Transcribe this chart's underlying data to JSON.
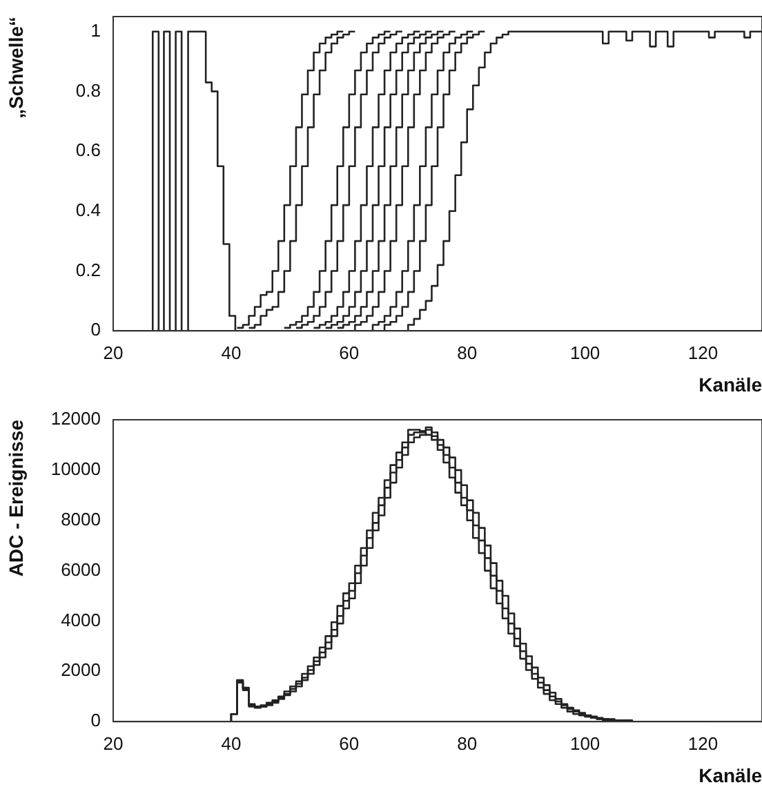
{
  "chart_data": [
    {
      "type": "step",
      "xlabel": "Kanäle",
      "ylabel": "„Schwelle“",
      "xlim": [
        20,
        130
      ],
      "xticks": [
        20,
        40,
        60,
        80,
        100,
        120
      ],
      "ylim": [
        0,
        1.05
      ],
      "yticks": [
        0,
        0.2,
        0.4,
        0.6,
        0.8,
        1
      ],
      "series": [
        {
          "color": "#222222",
          "x": [
            26.7,
            26.7,
            27.7,
            28.6,
            29.6,
            30.6,
            31.6,
            32.7,
            35.7,
            36.7,
            37.7,
            38.7,
            39.7,
            40.7
          ],
          "values": [
            0,
            1,
            0,
            1,
            0,
            1,
            0,
            1,
            0.83,
            0.8,
            0.55,
            0.29,
            0.05,
            0
          ]
        },
        {
          "color": "#222222",
          "x": [
            41,
            42,
            43,
            44,
            45,
            46,
            47,
            48,
            49,
            50,
            51,
            52,
            53,
            54,
            55,
            56,
            57,
            58,
            59
          ],
          "values": [
            0.01,
            0.02,
            0.05,
            0.08,
            0.12,
            0.13,
            0.2,
            0.3,
            0.42,
            0.55,
            0.68,
            0.79,
            0.87,
            0.93,
            0.96,
            0.98,
            0.99,
            1,
            1
          ]
        },
        {
          "color": "#222222",
          "x": [
            43,
            44,
            45,
            46,
            47,
            48,
            49,
            50,
            51,
            52,
            53,
            54,
            55,
            56,
            57,
            58,
            59,
            60,
            61
          ],
          "values": [
            0.01,
            0.02,
            0.05,
            0.07,
            0.08,
            0.13,
            0.2,
            0.3,
            0.42,
            0.55,
            0.68,
            0.79,
            0.87,
            0.93,
            0.96,
            0.98,
            0.99,
            1,
            1
          ]
        },
        {
          "color": "#222222",
          "x": [
            49,
            50,
            51,
            52,
            53,
            54,
            55,
            56,
            57,
            58,
            59,
            60,
            61,
            62,
            63,
            64,
            65,
            66,
            67
          ],
          "values": [
            0.01,
            0.02,
            0.03,
            0.05,
            0.08,
            0.13,
            0.2,
            0.3,
            0.42,
            0.55,
            0.68,
            0.79,
            0.87,
            0.93,
            0.96,
            0.98,
            0.99,
            1,
            1
          ]
        },
        {
          "color": "#222222",
          "x": [
            51,
            52,
            53,
            54,
            55,
            56,
            57,
            58,
            59,
            60,
            61,
            62,
            63,
            64,
            65,
            66,
            67,
            68,
            69
          ],
          "values": [
            0.01,
            0.02,
            0.03,
            0.05,
            0.08,
            0.13,
            0.2,
            0.3,
            0.42,
            0.55,
            0.68,
            0.79,
            0.87,
            0.93,
            0.96,
            0.98,
            0.99,
            1,
            1
          ]
        },
        {
          "color": "#222222",
          "x": [
            54,
            55,
            56,
            57,
            58,
            59,
            60,
            61,
            62,
            63,
            64,
            65,
            66,
            67,
            68,
            69,
            70,
            71,
            72
          ],
          "values": [
            0.01,
            0.02,
            0.03,
            0.05,
            0.08,
            0.13,
            0.2,
            0.3,
            0.42,
            0.55,
            0.68,
            0.79,
            0.87,
            0.93,
            0.96,
            0.98,
            0.99,
            1,
            1
          ]
        },
        {
          "color": "#222222",
          "x": [
            56,
            57,
            58,
            59,
            60,
            61,
            62,
            63,
            64,
            65,
            66,
            67,
            68,
            69,
            70,
            71,
            72,
            73,
            74
          ],
          "values": [
            0.01,
            0.02,
            0.03,
            0.05,
            0.08,
            0.13,
            0.2,
            0.3,
            0.42,
            0.55,
            0.68,
            0.79,
            0.87,
            0.93,
            0.96,
            0.98,
            0.99,
            1,
            1
          ]
        },
        {
          "color": "#222222",
          "x": [
            58,
            59,
            60,
            61,
            62,
            63,
            64,
            65,
            66,
            67,
            68,
            69,
            70,
            71,
            72,
            73,
            74,
            75,
            76
          ],
          "values": [
            0.01,
            0.02,
            0.03,
            0.05,
            0.08,
            0.13,
            0.2,
            0.3,
            0.42,
            0.55,
            0.68,
            0.79,
            0.87,
            0.93,
            0.96,
            0.98,
            0.99,
            1,
            1
          ]
        },
        {
          "color": "#222222",
          "x": [
            60,
            61,
            62,
            63,
            64,
            65,
            66,
            67,
            68,
            69,
            70,
            71,
            72,
            73,
            74,
            75,
            76,
            77,
            78
          ],
          "values": [
            0,
            0.02,
            0.03,
            0.05,
            0.08,
            0.13,
            0.2,
            0.3,
            0.42,
            0.55,
            0.68,
            0.79,
            0.87,
            0.93,
            0.96,
            0.98,
            0.99,
            1,
            1
          ]
        },
        {
          "color": "#222222",
          "x": [
            63,
            64,
            65,
            66,
            67,
            68,
            69,
            70,
            71,
            72,
            73,
            74,
            75,
            76,
            77,
            78,
            79,
            80,
            81
          ],
          "values": [
            0,
            0.02,
            0.03,
            0.05,
            0.08,
            0.13,
            0.2,
            0.3,
            0.42,
            0.55,
            0.68,
            0.79,
            0.87,
            0.93,
            0.96,
            0.98,
            0.99,
            1,
            1
          ]
        },
        {
          "color": "#222222",
          "x": [
            65,
            66,
            67,
            68,
            69,
            70,
            71,
            72,
            73,
            74,
            75,
            76,
            77,
            78,
            79,
            80,
            81,
            82,
            83
          ],
          "values": [
            0,
            0.02,
            0.03,
            0.05,
            0.08,
            0.13,
            0.2,
            0.3,
            0.42,
            0.55,
            0.68,
            0.79,
            0.87,
            0.93,
            0.96,
            0.98,
            0.99,
            1,
            1
          ]
        },
        {
          "color": "#222222",
          "x": [
            69,
            70,
            71,
            72,
            73,
            74,
            75,
            76,
            77,
            78,
            79,
            80,
            81,
            82,
            83,
            84,
            85,
            86,
            87,
            88,
            103,
            104,
            107,
            108,
            111,
            112,
            114,
            115,
            121,
            122,
            127,
            128,
            130
          ],
          "values": [
            0,
            0.02,
            0.04,
            0.07,
            0.1,
            0.15,
            0.22,
            0.3,
            0.4,
            0.52,
            0.63,
            0.74,
            0.82,
            0.88,
            0.93,
            0.96,
            0.98,
            0.99,
            1,
            1,
            0.96,
            1,
            0.97,
            1,
            0.95,
            1,
            0.95,
            1,
            0.98,
            1,
            0.98,
            1,
            1
          ]
        }
      ]
    },
    {
      "type": "step",
      "xlabel": "Kanäle",
      "ylabel": "ADC - Ereignisse",
      "xlim": [
        20,
        130
      ],
      "xticks": [
        20,
        40,
        60,
        80,
        100,
        120
      ],
      "ylim": [
        0,
        12000
      ],
      "yticks": [
        0,
        2000,
        4000,
        6000,
        8000,
        10000,
        12000
      ],
      "series": [
        {
          "color": "#222222",
          "x": [
            39,
            40,
            41,
            42,
            43,
            44,
            45,
            46,
            47,
            48,
            49,
            50,
            51,
            52,
            53,
            54,
            55,
            56,
            57,
            58,
            59,
            60,
            61,
            62,
            63,
            64,
            65,
            66,
            67,
            68,
            69,
            70,
            71,
            72,
            73,
            74,
            75,
            76,
            77,
            78,
            79,
            80,
            81,
            82,
            83,
            84,
            85,
            86,
            87,
            88,
            89,
            90,
            91,
            92,
            93,
            94,
            95,
            96,
            97,
            98,
            99,
            100,
            101,
            102,
            103,
            104,
            105,
            106,
            107,
            108,
            109,
            110,
            111,
            112,
            113,
            114,
            115,
            116,
            117,
            118,
            119,
            120,
            121
          ],
          "values": [
            0,
            300,
            1600,
            1300,
            650,
            600,
            600,
            700,
            800,
            950,
            1100,
            1300,
            1500,
            1750,
            2050,
            2400,
            2750,
            3150,
            3650,
            4200,
            4800,
            5200,
            5900,
            6600,
            7300,
            7900,
            8600,
            9300,
            9900,
            10400,
            10900,
            11400,
            11500,
            11550,
            11600,
            11350,
            11000,
            10600,
            10100,
            9500,
            8900,
            8400,
            7800,
            7200,
            6500,
            5800,
            5200,
            4500,
            3900,
            3300,
            2800,
            2300,
            1900,
            1550,
            1250,
            1000,
            800,
            650,
            500,
            400,
            300,
            200,
            150,
            100,
            100,
            50,
            50,
            50,
            0,
            0,
            0,
            0,
            0,
            0,
            0,
            0,
            0,
            0,
            0,
            0,
            0,
            0,
            0
          ]
        },
        {
          "color": "#222222",
          "x": [
            39,
            40,
            41,
            42,
            43,
            44,
            45,
            46,
            47,
            48,
            49,
            50,
            51,
            52,
            53,
            54,
            55,
            56,
            57,
            58,
            59,
            60,
            61,
            62,
            63,
            64,
            65,
            66,
            67,
            68,
            69,
            70,
            71,
            72,
            73,
            74,
            75,
            76,
            77,
            78,
            79,
            80,
            81,
            82,
            83,
            84,
            85,
            86,
            87,
            88,
            89,
            90,
            91,
            92,
            93,
            94,
            95,
            96,
            97,
            98,
            99,
            100,
            101,
            102,
            103,
            104,
            105,
            106,
            107,
            108,
            109,
            110,
            111,
            112,
            113,
            114,
            115,
            116,
            117,
            118,
            119,
            120,
            121
          ],
          "values": [
            0,
            300,
            1550,
            1250,
            600,
            550,
            600,
            650,
            750,
            900,
            1050,
            1200,
            1400,
            1650,
            1900,
            2250,
            2550,
            2900,
            3400,
            3900,
            4500,
            4900,
            5500,
            6200,
            6900,
            7600,
            8200,
            8900,
            9500,
            10100,
            10600,
            11100,
            11300,
            11400,
            11700,
            11500,
            11200,
            10900,
            10500,
            10000,
            9400,
            8800,
            8300,
            7700,
            7000,
            6300,
            5600,
            5000,
            4300,
            3700,
            3100,
            2600,
            2150,
            1750,
            1450,
            1150,
            900,
            700,
            550,
            450,
            350,
            250,
            200,
            150,
            100,
            100,
            50,
            50,
            50,
            0,
            0,
            0,
            0,
            0,
            0,
            0,
            0,
            0,
            0,
            0,
            0,
            0,
            0
          ]
        },
        {
          "color": "#222222",
          "x": [
            39,
            40,
            41,
            42,
            43,
            44,
            45,
            46,
            47,
            48,
            49,
            50,
            51,
            52,
            53,
            54,
            55,
            56,
            57,
            58,
            59,
            60,
            61,
            62,
            63,
            64,
            65,
            66,
            67,
            68,
            69,
            70,
            71,
            72,
            73,
            74,
            75,
            76,
            77,
            78,
            79,
            80,
            81,
            82,
            83,
            84,
            85,
            86,
            87,
            88,
            89,
            90,
            91,
            92,
            93,
            94,
            95,
            96,
            97,
            98,
            99,
            100,
            101,
            102,
            103,
            104,
            105,
            106,
            107,
            108,
            109,
            110,
            111,
            112,
            113,
            114,
            115,
            116,
            117,
            118,
            119,
            120,
            121
          ],
          "values": [
            0,
            300,
            1650,
            1350,
            700,
            600,
            650,
            750,
            850,
            1000,
            1200,
            1400,
            1600,
            1900,
            2200,
            2550,
            2950,
            3400,
            3950,
            4600,
            5100,
            5500,
            6200,
            6900,
            7600,
            8300,
            8900,
            9600,
            10200,
            10700,
            11100,
            11600,
            11600,
            11500,
            11400,
            11200,
            10800,
            10300,
            9700,
            9100,
            8600,
            8000,
            7300,
            6700,
            6000,
            5300,
            4700,
            4100,
            3500,
            3000,
            2500,
            2050,
            1700,
            1350,
            1100,
            850,
            700,
            550,
            400,
            300,
            250,
            200,
            150,
            100,
            50,
            50,
            50,
            0,
            0,
            0,
            0,
            0,
            0,
            0,
            0,
            0,
            0,
            0,
            0,
            0,
            0,
            0,
            0
          ]
        }
      ]
    }
  ]
}
